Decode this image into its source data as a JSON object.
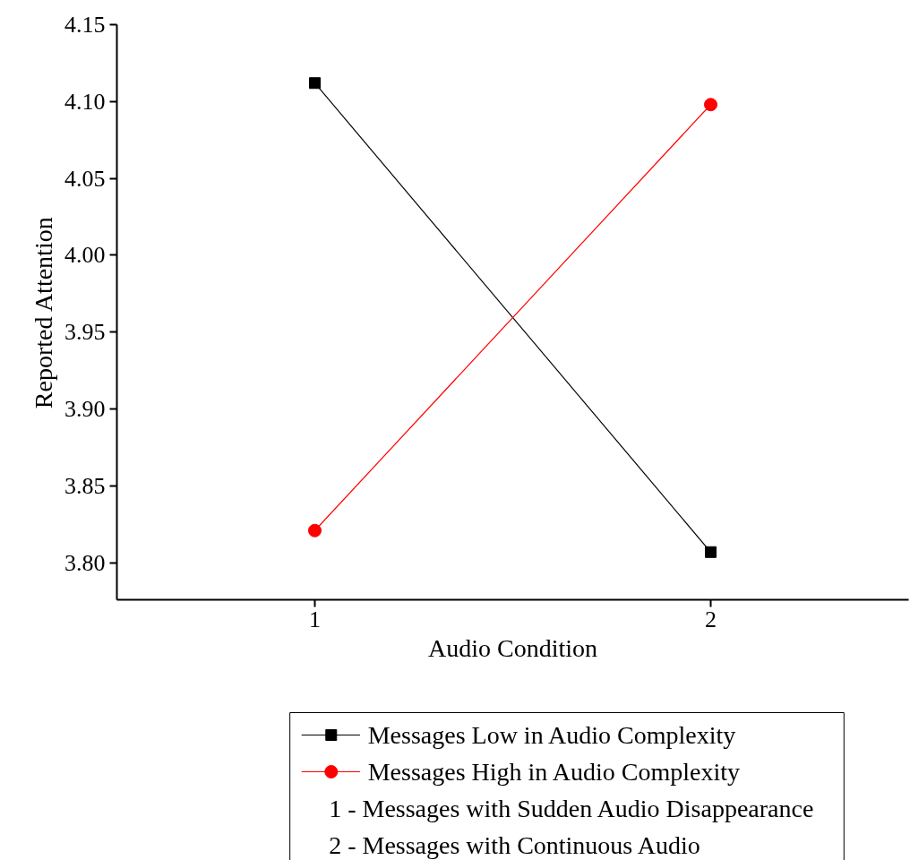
{
  "chart_data": {
    "type": "line",
    "xlabel": "Audio Condition",
    "ylabel": "Reported Attention",
    "x": [
      1,
      2
    ],
    "xlim": [
      0.5,
      2.5
    ],
    "xticks": [
      1,
      2
    ],
    "ylim": [
      3.776,
      4.15
    ],
    "yticks": [
      {
        "value": 3.8,
        "label": "3.80"
      },
      {
        "value": 3.85,
        "label": "3.85"
      },
      {
        "value": 3.9,
        "label": "3.90"
      },
      {
        "value": 3.95,
        "label": "3.95"
      },
      {
        "value": 4.0,
        "label": "4.00"
      },
      {
        "value": 4.05,
        "label": "4.05"
      },
      {
        "value": 4.1,
        "label": "4.10"
      },
      {
        "value": 4.15,
        "label": "4.15"
      }
    ],
    "series": [
      {
        "name": "Messages Low in Audio Complexity",
        "color": "#000000",
        "marker": "square",
        "values": [
          4.112,
          3.807
        ]
      },
      {
        "name": "Messages High in Audio Complexity",
        "color": "#ff0000",
        "marker": "circle",
        "values": [
          3.821,
          4.098
        ]
      }
    ],
    "annotations": [
      "1 -  Messages with Sudden Audio Disappearance",
      "2 -  Messages with Continuous Audio"
    ],
    "grid": false,
    "legend": "bottom",
    "line_style": "solid"
  }
}
